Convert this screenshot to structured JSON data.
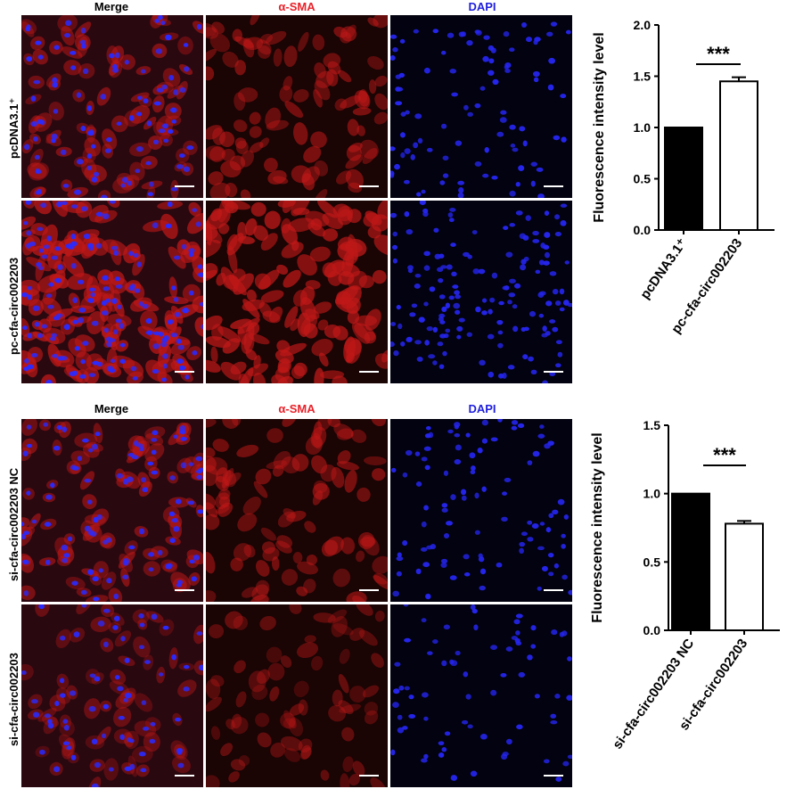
{
  "figure": {
    "column_headers": [
      "Merge",
      "α-SMA",
      "DAPI"
    ],
    "column_header_colors": [
      "#000000",
      "#e8222a",
      "#1f1fdc"
    ],
    "top_block": {
      "row_labels": [
        "pcDNA3.1⁺",
        "pc-cfa-circ002203"
      ]
    },
    "bottom_block": {
      "row_labels": [
        "si-cfa-circ002203 NC",
        "si-cfa-circ002203"
      ]
    },
    "channel_colors": {
      "merge_nuclei": "#2a2aff",
      "merge_background": "#2a0810",
      "sma": "#c01818",
      "dapi": "#2525ee"
    }
  },
  "chart_data": [
    {
      "type": "bar",
      "categories": [
        "pcDNA3.1⁺",
        "pc-cfa-circ002203"
      ],
      "values": [
        1.0,
        1.45
      ],
      "errors": [
        0,
        0.04
      ],
      "bar_fills": [
        "#000000",
        "#ffffff"
      ],
      "ylabel": "Fluorescence intensity level",
      "ylim": [
        0,
        2.0
      ],
      "yticks": [
        "0.0",
        "0.5",
        "1.0",
        "1.5",
        "2.0"
      ],
      "significance": "***"
    },
    {
      "type": "bar",
      "categories": [
        "si-cfa-circ002203 NC",
        "si-cfa-circ002203"
      ],
      "values": [
        1.0,
        0.78
      ],
      "errors": [
        0,
        0.02
      ],
      "bar_fills": [
        "#000000",
        "#ffffff"
      ],
      "ylabel": "Fluorescence intensity level",
      "ylim": [
        0,
        1.5
      ],
      "yticks": [
        "0.0",
        "0.5",
        "1.0",
        "1.5"
      ],
      "significance": "***"
    }
  ]
}
